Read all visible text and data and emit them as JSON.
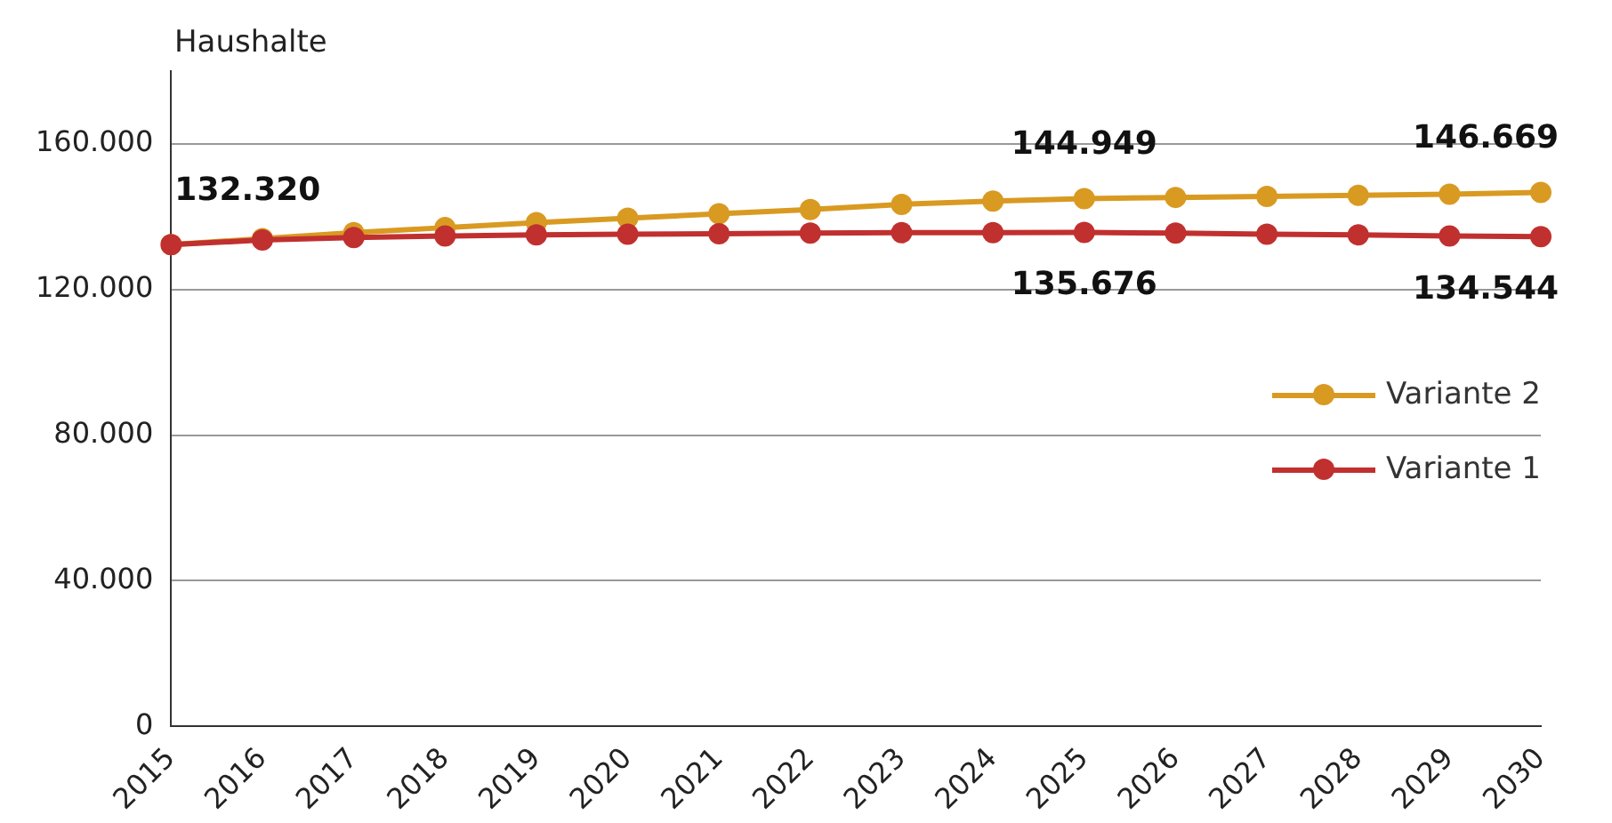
{
  "chart_data": {
    "type": "line",
    "ylabel": "Haushalte",
    "categories": [
      "2015",
      "2016",
      "2017",
      "2018",
      "2019",
      "2020",
      "2021",
      "2022",
      "2023",
      "2024",
      "2025",
      "2026",
      "2027",
      "2028",
      "2029",
      "2030"
    ],
    "series": [
      {
        "name": "Variante 2",
        "color": "#d99a22",
        "values": [
          132320,
          134000,
          135600,
          137000,
          138400,
          139600,
          140800,
          142000,
          143400,
          144300,
          144949,
          145300,
          145600,
          145900,
          146200,
          146669
        ],
        "value_labels": [
          "132.320",
          null,
          null,
          null,
          null,
          null,
          null,
          null,
          null,
          null,
          "144.949",
          null,
          null,
          null,
          null,
          "146.669"
        ]
      },
      {
        "name": "Variante 1",
        "color": "#c0302f",
        "values": [
          132320,
          133600,
          134300,
          134700,
          135000,
          135200,
          135300,
          135500,
          135600,
          135650,
          135676,
          135500,
          135200,
          135000,
          134700,
          134544
        ],
        "value_labels": [
          null,
          null,
          null,
          null,
          null,
          null,
          null,
          null,
          null,
          null,
          "135.676",
          null,
          null,
          null,
          null,
          "134.544"
        ]
      }
    ],
    "ylim": [
      0,
      180000
    ],
    "yticks": [
      {
        "value": 0,
        "label": "0"
      },
      {
        "value": 40000,
        "label": "40.000"
      },
      {
        "value": 80000,
        "label": "80.000"
      },
      {
        "value": 120000,
        "label": "120.000"
      },
      {
        "value": 160000,
        "label": "160.000"
      }
    ],
    "grid": "y",
    "legend": "right",
    "marker": "circle",
    "line_style": "solid"
  }
}
